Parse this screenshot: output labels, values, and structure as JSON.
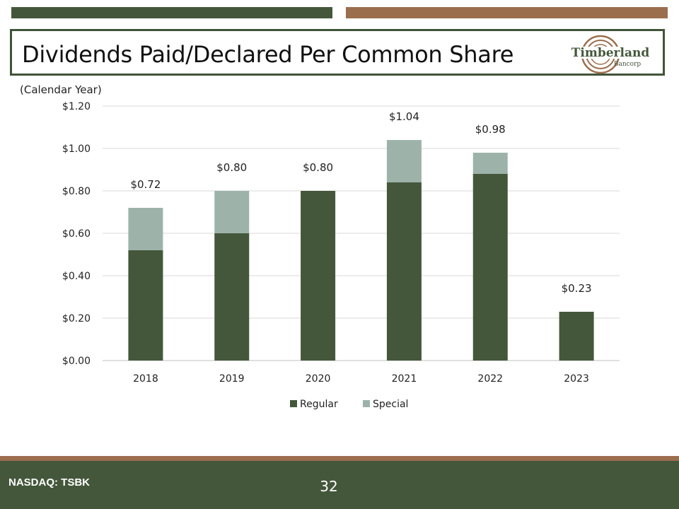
{
  "header": {
    "title": "Dividends Paid/Declared Per Common Share",
    "logo_text_main": "Timberland",
    "logo_text_sub": "Bancorp"
  },
  "chart_subtitle": "(Calendar Year)",
  "footer": {
    "ticker": "NASDAQ: TSBK",
    "page_number": "32"
  },
  "colors": {
    "regular": "#44573b",
    "special": "#9db3aa",
    "brand_green": "#44573b",
    "brand_brown": "#9b6e4e"
  },
  "chart_data": {
    "type": "bar",
    "stacked": true,
    "categories": [
      "2018",
      "2019",
      "2020",
      "2021",
      "2022",
      "2023"
    ],
    "series": [
      {
        "name": "Regular",
        "values": [
          0.52,
          0.6,
          0.8,
          0.84,
          0.88,
          0.23
        ]
      },
      {
        "name": "Special",
        "values": [
          0.2,
          0.2,
          0.0,
          0.2,
          0.1,
          0.0
        ]
      }
    ],
    "total_labels": [
      "$0.72",
      "$0.80",
      "$0.80",
      "$1.04",
      "$0.98",
      "$0.23"
    ],
    "ylim": [
      0,
      1.2
    ],
    "yticks": [
      0,
      0.2,
      0.4,
      0.6,
      0.8,
      1.0,
      1.2
    ],
    "ytick_labels": [
      "$0.00",
      "$0.20",
      "$0.40",
      "$0.60",
      "$0.80",
      "$1.00",
      "$1.20"
    ],
    "grid": true,
    "legend_position": "bottom"
  }
}
